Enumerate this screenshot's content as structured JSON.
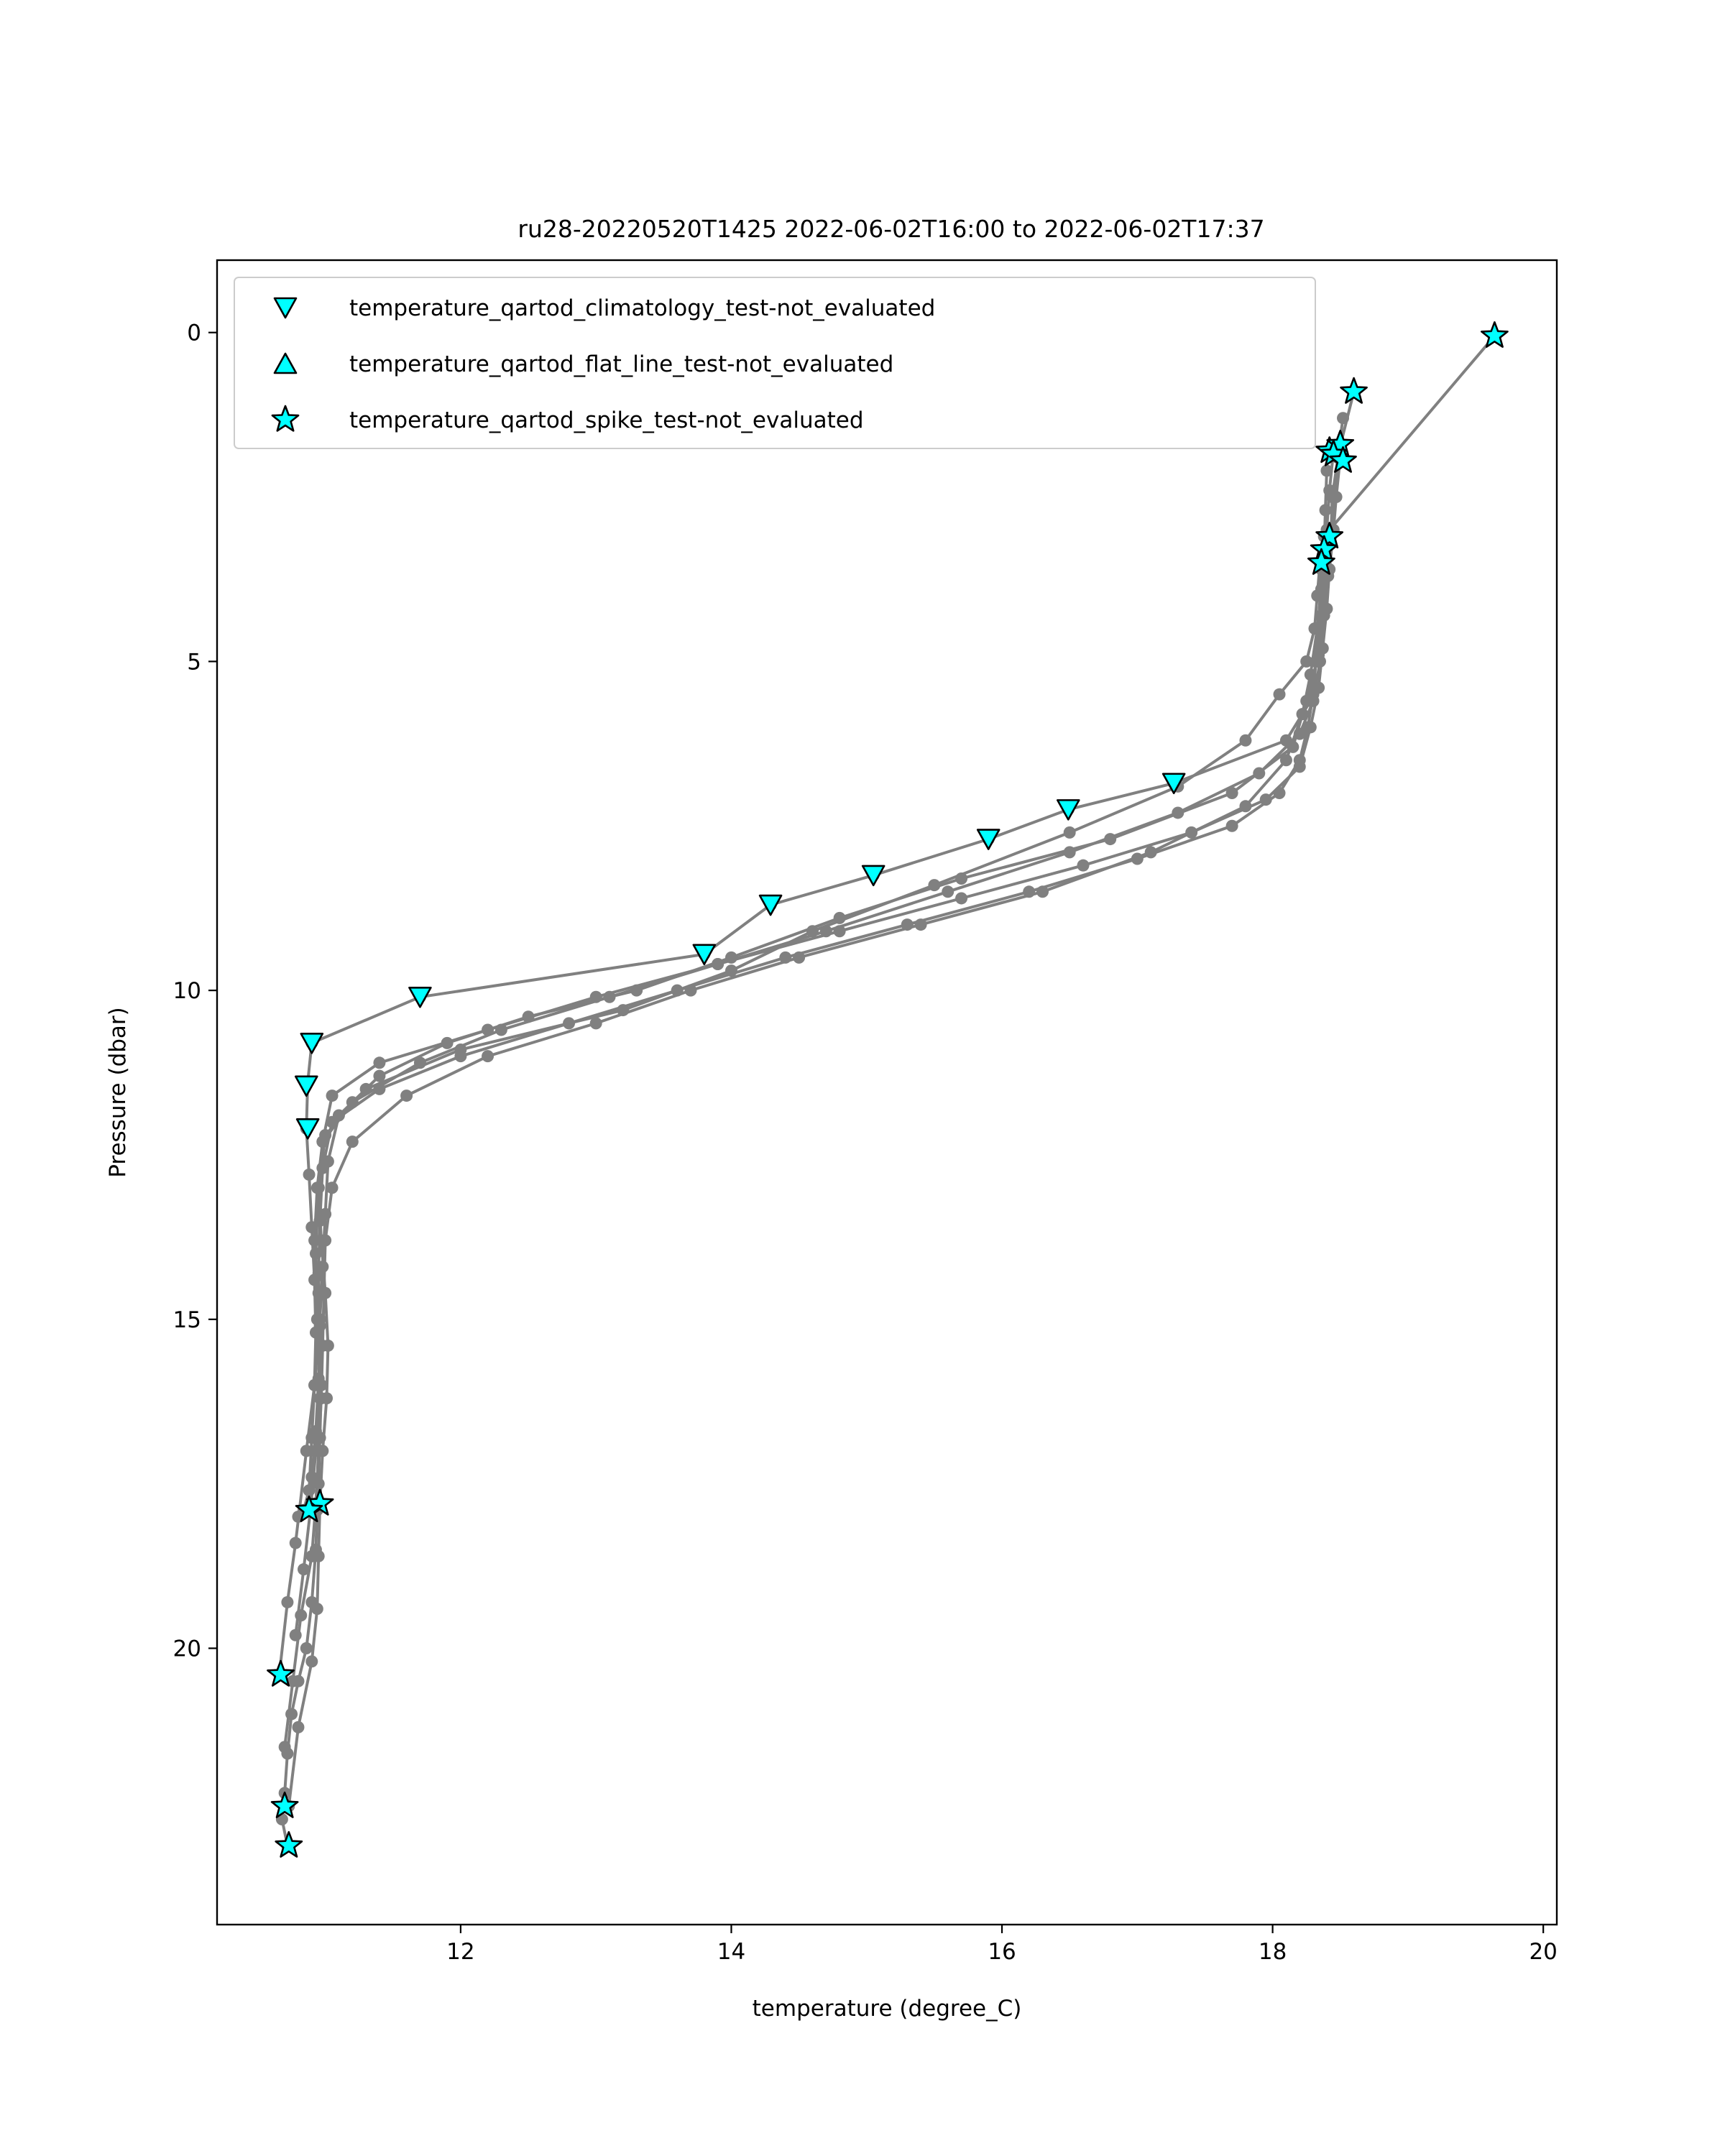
{
  "chart_data": {
    "type": "scatter",
    "title": "ru28-20220520T1425 2022-06-02T16:00 to 2022-06-02T17:37",
    "xlabel": "temperature (degree_C)",
    "ylabel": "Pressure (dbar)",
    "xlim": [
      10.2,
      20.1
    ],
    "ylim": [
      24.2,
      -1.1
    ],
    "y_inverted": true,
    "grid": false,
    "legend_position": "upper-left",
    "xticks": [
      12,
      14,
      16,
      18,
      20
    ],
    "yticks": [
      0,
      5,
      10,
      15,
      20
    ],
    "profile_color": "#808080",
    "flag_color": "#00ffff",
    "profiles": [
      {
        "x": [
          19.64,
          18.38,
          18.35,
          18.33,
          18.31,
          18.25,
          18.05,
          17.8,
          17.3,
          16.5,
          15.5,
          14.6,
          14.0,
          13.2,
          12.0,
          11.3,
          11.0,
          10.95,
          10.93,
          10.94,
          10.97,
          10.96,
          10.95,
          10.94,
          10.93,
          10.9,
          10.86,
          10.8,
          10.75,
          10.72,
          10.7,
          10.68,
          10.72
        ],
        "y": [
          0.05,
          3.1,
          3.5,
          4.0,
          4.5,
          5.0,
          5.5,
          6.2,
          6.9,
          7.6,
          8.4,
          9.1,
          9.7,
          10.3,
          10.9,
          11.5,
          12.2,
          13.0,
          14.0,
          15.0,
          16.0,
          16.8,
          17.5,
          17.9,
          18.5,
          19.3,
          20.0,
          20.5,
          21.0,
          21.6,
          22.2,
          22.6,
          23.0
        ]
      },
      {
        "x": [
          18.6,
          18.49,
          18.44,
          18.43,
          18.41,
          18.38,
          18.35,
          18.3,
          18.2,
          17.9,
          17.3,
          16.5,
          15.6,
          14.7,
          13.9,
          13.0,
          12.2,
          11.4,
          11.05,
          10.98,
          10.95,
          10.97,
          11.0,
          11.02,
          11.01,
          10.98,
          10.96,
          10.95,
          10.94,
          10.9,
          10.8,
          10.73
        ],
        "y": [
          0.9,
          1.8,
          2.5,
          3.2,
          3.7,
          4.3,
          5.0,
          5.6,
          6.1,
          6.7,
          7.3,
          7.9,
          8.5,
          9.1,
          9.6,
          10.1,
          10.6,
          11.1,
          11.6,
          12.3,
          13.0,
          13.8,
          14.6,
          15.4,
          16.2,
          17.0,
          17.8,
          18.6,
          19.4,
          20.2,
          21.2,
          22.4
        ]
      },
      {
        "x": [
          18.45,
          18.42,
          18.4,
          18.38,
          18.36,
          18.32,
          18.28,
          18.1,
          17.27,
          16.49,
          15.9,
          15.05,
          14.29,
          13.8,
          11.7,
          10.9,
          10.87,
          10.86,
          10.88,
          10.9,
          10.92,
          10.93,
          10.92,
          10.9,
          10.88,
          10.84,
          10.8
        ],
        "y": [
          1.8,
          2.4,
          3.0,
          3.6,
          4.3,
          5.0,
          5.6,
          6.2,
          6.85,
          7.25,
          7.7,
          8.25,
          8.7,
          9.45,
          10.1,
          10.8,
          11.4,
          12.1,
          12.8,
          13.6,
          14.4,
          15.2,
          16.0,
          16.8,
          17.6,
          17.9,
          18.0
        ]
      },
      {
        "x": [
          18.52,
          18.48,
          18.46,
          18.43,
          18.4,
          18.37,
          18.34,
          18.25,
          18.15,
          17.7,
          16.8,
          15.7,
          14.8,
          14.0,
          13.3,
          12.5,
          11.9,
          11.4,
          11.1,
          11.02,
          11.0,
          10.98,
          10.96,
          10.92,
          10.86,
          10.78,
          10.72,
          10.66
        ],
        "y": [
          1.3,
          1.9,
          2.5,
          3.1,
          3.7,
          4.3,
          4.9,
          5.6,
          6.3,
          7.0,
          7.7,
          8.3,
          8.9,
          9.5,
          10.0,
          10.4,
          10.8,
          11.3,
          11.9,
          12.6,
          13.4,
          14.2,
          15.0,
          16.0,
          17.0,
          18.4,
          19.3,
          20.4
        ]
      },
      {
        "x": [
          18.4,
          18.39,
          18.38,
          18.36,
          18.33,
          18.28,
          18.22,
          18.1,
          17.8,
          17.1,
          16.3,
          15.4,
          14.5,
          13.7,
          13.0,
          12.2,
          11.6,
          11.2,
          11.05,
          11.0,
          10.99,
          10.98,
          10.97,
          10.95,
          10.93,
          10.9,
          10.82,
          10.76,
          10.7
        ],
        "y": [
          2.1,
          2.7,
          3.3,
          3.9,
          4.5,
          5.2,
          5.8,
          6.5,
          7.2,
          7.9,
          8.5,
          9.0,
          9.5,
          10.0,
          10.5,
          11.0,
          11.6,
          12.3,
          13.0,
          13.8,
          14.6,
          15.4,
          16.2,
          17.0,
          17.8,
          18.6,
          19.5,
          20.5,
          21.5
        ]
      },
      {
        "x": [
          18.5,
          18.47,
          18.45,
          18.42,
          18.4,
          18.37,
          18.34,
          18.28,
          18.2,
          17.95,
          17.4,
          16.6,
          15.7,
          14.8,
          13.9,
          13.1,
          12.3,
          11.7,
          11.2,
          10.98,
          10.94,
          10.92,
          10.95,
          10.97,
          10.96,
          10.93,
          10.89,
          10.84,
          10.78
        ],
        "y": [
          1.9,
          2.5,
          3.0,
          3.6,
          4.2,
          4.8,
          5.4,
          6.0,
          6.6,
          7.1,
          7.6,
          8.1,
          8.6,
          9.1,
          9.6,
          10.1,
          10.6,
          11.1,
          11.7,
          12.3,
          13.0,
          13.8,
          14.6,
          15.4,
          16.2,
          17.0,
          17.9,
          18.8,
          19.8
        ]
      },
      {
        "x": [
          18.36,
          18.35,
          18.34,
          18.32,
          18.3,
          18.26,
          18.2,
          18.05,
          17.7,
          17.0,
          16.2,
          15.3,
          14.4,
          13.6,
          12.8,
          12.0,
          11.4,
          11.05,
          10.98,
          10.96,
          10.95,
          10.96,
          10.95,
          10.93,
          10.9,
          10.86
        ],
        "y": [
          3.6,
          4.0,
          4.5,
          5.0,
          5.5,
          6.0,
          6.5,
          7.0,
          7.5,
          8.0,
          8.5,
          9.0,
          9.5,
          10.0,
          10.5,
          11.0,
          11.5,
          12.0,
          12.7,
          13.5,
          14.3,
          15.1,
          15.9,
          16.7,
          17.4,
          17.9
        ]
      }
    ],
    "series": [
      {
        "name": "temperature_qartod_climatology_test-not_evaluated",
        "marker": "triangle-down",
        "x": [
          17.27,
          16.49,
          15.9,
          15.05,
          14.29,
          13.8,
          11.7,
          10.9,
          10.86,
          10.87
        ],
        "y": [
          6.85,
          7.25,
          7.7,
          8.25,
          8.7,
          9.45,
          10.1,
          10.8,
          11.45,
          12.1
        ]
      },
      {
        "name": "temperature_qartod_flat_line_test-not_evaluated",
        "marker": "triangle-up",
        "x": [],
        "y": []
      },
      {
        "name": "temperature_qartod_spike_test-not_evaluated",
        "marker": "star",
        "x": [
          19.64,
          18.6,
          18.42,
          18.5,
          18.45,
          18.52,
          18.42,
          18.38,
          18.36,
          10.96,
          10.88,
          10.67,
          10.7,
          10.73
        ],
        "y": [
          0.05,
          0.9,
          1.8,
          1.7,
          1.85,
          1.95,
          3.1,
          3.3,
          3.5,
          17.8,
          17.9,
          20.4,
          22.4,
          23.0
        ]
      }
    ]
  }
}
